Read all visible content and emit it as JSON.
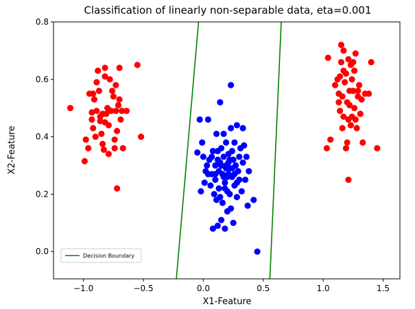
{
  "chart_data": {
    "type": "scatter",
    "title": "Classification of linearly non-separable data, eta=0.001",
    "xlabel": "X1-Feature",
    "ylabel": "X2-Feature",
    "xlim": [
      -1.25,
      1.64
    ],
    "ylim": [
      -0.095,
      0.8
    ],
    "xticks": [
      -1.0,
      -0.5,
      0.0,
      0.5,
      1.0,
      1.5
    ],
    "xtick_labels": [
      "−1.0",
      "−0.5",
      "0.0",
      "0.5",
      "1.0",
      "1.5"
    ],
    "yticks": [
      0.0,
      0.2,
      0.4,
      0.6,
      0.8
    ],
    "ytick_labels": [
      "0.0",
      "0.2",
      "0.4",
      "0.6",
      "0.8"
    ],
    "grid": false,
    "legend": {
      "position": "lower-left",
      "entries": [
        "Decision Boundary"
      ]
    },
    "series": [
      {
        "color": "#ff0000",
        "points": [
          [
            -1.11,
            0.5
          ],
          [
            -0.99,
            0.315
          ],
          [
            -0.98,
            0.39
          ],
          [
            -0.96,
            0.36
          ],
          [
            -0.95,
            0.55
          ],
          [
            -0.93,
            0.46
          ],
          [
            -0.93,
            0.485
          ],
          [
            -0.92,
            0.55
          ],
          [
            -0.92,
            0.43
          ],
          [
            -0.91,
            0.53
          ],
          [
            -0.9,
            0.4
          ],
          [
            -0.89,
            0.59
          ],
          [
            -0.89,
            0.49
          ],
          [
            -0.88,
            0.63
          ],
          [
            -0.87,
            0.56
          ],
          [
            -0.86,
            0.47
          ],
          [
            -0.86,
            0.455
          ],
          [
            -0.85,
            0.41
          ],
          [
            -0.84,
            0.48
          ],
          [
            -0.84,
            0.375
          ],
          [
            -0.83,
            0.355
          ],
          [
            -0.82,
            0.64
          ],
          [
            -0.82,
            0.61
          ],
          [
            -0.82,
            0.45
          ],
          [
            -0.81,
            0.48
          ],
          [
            -0.8,
            0.5
          ],
          [
            -0.79,
            0.44
          ],
          [
            -0.79,
            0.34
          ],
          [
            -0.78,
            0.6
          ],
          [
            -0.77,
            0.49
          ],
          [
            -0.76,
            0.56
          ],
          [
            -0.75,
            0.54
          ],
          [
            -0.74,
            0.39
          ],
          [
            -0.74,
            0.36
          ],
          [
            -0.73,
            0.58
          ],
          [
            -0.73,
            0.49
          ],
          [
            -0.72,
            0.22
          ],
          [
            -0.72,
            0.42
          ],
          [
            -0.71,
            0.51
          ],
          [
            -0.7,
            0.64
          ],
          [
            -0.7,
            0.53
          ],
          [
            -0.69,
            0.46
          ],
          [
            -0.68,
            0.49
          ],
          [
            -0.67,
            0.36
          ],
          [
            -0.64,
            0.49
          ],
          [
            -0.55,
            0.65
          ],
          [
            -0.52,
            0.4
          ],
          [
            1.03,
            0.36
          ],
          [
            1.04,
            0.675
          ],
          [
            1.06,
            0.39
          ],
          [
            1.1,
            0.58
          ],
          [
            1.12,
            0.6
          ],
          [
            1.13,
            0.55
          ],
          [
            1.13,
            0.52
          ],
          [
            1.14,
            0.49
          ],
          [
            1.14,
            0.61
          ],
          [
            1.15,
            0.72
          ],
          [
            1.15,
            0.66
          ],
          [
            1.16,
            0.43
          ],
          [
            1.16,
            0.54
          ],
          [
            1.17,
            0.47
          ],
          [
            1.17,
            0.63
          ],
          [
            1.17,
            0.7
          ],
          [
            1.18,
            0.59
          ],
          [
            1.19,
            0.62
          ],
          [
            1.19,
            0.36
          ],
          [
            1.2,
            0.38
          ],
          [
            1.2,
            0.52
          ],
          [
            1.21,
            0.46
          ],
          [
            1.21,
            0.25
          ],
          [
            1.21,
            0.67
          ],
          [
            1.22,
            0.51
          ],
          [
            1.22,
            0.56
          ],
          [
            1.23,
            0.44
          ],
          [
            1.23,
            0.65
          ],
          [
            1.24,
            0.6
          ],
          [
            1.24,
            0.47
          ],
          [
            1.25,
            0.66
          ],
          [
            1.25,
            0.56
          ],
          [
            1.26,
            0.5
          ],
          [
            1.26,
            0.63
          ],
          [
            1.27,
            0.69
          ],
          [
            1.27,
            0.46
          ],
          [
            1.28,
            0.43
          ],
          [
            1.29,
            0.56
          ],
          [
            1.29,
            0.54
          ],
          [
            1.3,
            0.58
          ],
          [
            1.31,
            0.48
          ],
          [
            1.32,
            0.53
          ],
          [
            1.33,
            0.38
          ],
          [
            1.35,
            0.55
          ],
          [
            1.38,
            0.55
          ],
          [
            1.4,
            0.66
          ],
          [
            1.45,
            0.36
          ]
        ]
      },
      {
        "color": "#0000ff",
        "points": [
          [
            -0.05,
            0.345
          ],
          [
            -0.03,
            0.46
          ],
          [
            -0.02,
            0.21
          ],
          [
            -0.01,
            0.38
          ],
          [
            0.0,
            0.33
          ],
          [
            0.01,
            0.24
          ],
          [
            0.02,
            0.28
          ],
          [
            0.03,
            0.3
          ],
          [
            0.04,
            0.46
          ],
          [
            0.04,
            0.27
          ],
          [
            0.05,
            0.32
          ],
          [
            0.06,
            0.23
          ],
          [
            0.07,
            0.33
          ],
          [
            0.07,
            0.27
          ],
          [
            0.08,
            0.08
          ],
          [
            0.08,
            0.35
          ],
          [
            0.09,
            0.2
          ],
          [
            0.1,
            0.3
          ],
          [
            0.1,
            0.25
          ],
          [
            0.11,
            0.18
          ],
          [
            0.11,
            0.41
          ],
          [
            0.12,
            0.32
          ],
          [
            0.12,
            0.09
          ],
          [
            0.13,
            0.28
          ],
          [
            0.13,
            0.22
          ],
          [
            0.14,
            0.52
          ],
          [
            0.14,
            0.19
          ],
          [
            0.15,
            0.36
          ],
          [
            0.15,
            0.3
          ],
          [
            0.15,
            0.11
          ],
          [
            0.16,
            0.27
          ],
          [
            0.16,
            0.17
          ],
          [
            0.17,
            0.41
          ],
          [
            0.17,
            0.33
          ],
          [
            0.18,
            0.24
          ],
          [
            0.18,
            0.08
          ],
          [
            0.19,
            0.3
          ],
          [
            0.19,
            0.38
          ],
          [
            0.2,
            0.26
          ],
          [
            0.2,
            0.21
          ],
          [
            0.21,
            0.34
          ],
          [
            0.21,
            0.31
          ],
          [
            0.22,
            0.2
          ],
          [
            0.22,
            0.29
          ],
          [
            0.23,
            0.43
          ],
          [
            0.23,
            0.15
          ],
          [
            0.24,
            0.26
          ],
          [
            0.24,
            0.35
          ],
          [
            0.25,
            0.32
          ],
          [
            0.25,
            0.1
          ],
          [
            0.26,
            0.23
          ],
          [
            0.26,
            0.38
          ],
          [
            0.27,
            0.3
          ],
          [
            0.28,
            0.44
          ],
          [
            0.28,
            0.19
          ],
          [
            0.29,
            0.28
          ],
          [
            0.3,
            0.33
          ],
          [
            0.3,
            0.25
          ],
          [
            0.31,
            0.36
          ],
          [
            0.32,
            0.21
          ],
          [
            0.33,
            0.43
          ],
          [
            0.33,
            0.31
          ],
          [
            0.34,
            0.37
          ],
          [
            0.35,
            0.25
          ],
          [
            0.36,
            0.33
          ],
          [
            0.37,
            0.16
          ],
          [
            0.38,
            0.28
          ],
          [
            0.42,
            0.18
          ],
          [
            0.45,
            0.0
          ],
          [
            0.19,
            0.29
          ],
          [
            0.21,
            0.27
          ],
          [
            0.17,
            0.26
          ],
          [
            0.22,
            0.32
          ],
          [
            0.24,
            0.29
          ],
          [
            0.12,
            0.35
          ],
          [
            0.26,
            0.27
          ],
          [
            0.14,
            0.31
          ],
          [
            0.18,
            0.22
          ],
          [
            0.28,
            0.24
          ],
          [
            0.1,
            0.27
          ],
          [
            0.23,
            0.58
          ],
          [
            0.2,
            0.14
          ]
        ]
      }
    ],
    "decision_boundary": {
      "color": "#008000",
      "lines": [
        [
          [
            -0.225,
            -0.095
          ],
          [
            -0.04,
            0.8
          ]
        ],
        [
          [
            0.555,
            -0.095
          ],
          [
            0.65,
            0.8
          ]
        ]
      ]
    }
  }
}
